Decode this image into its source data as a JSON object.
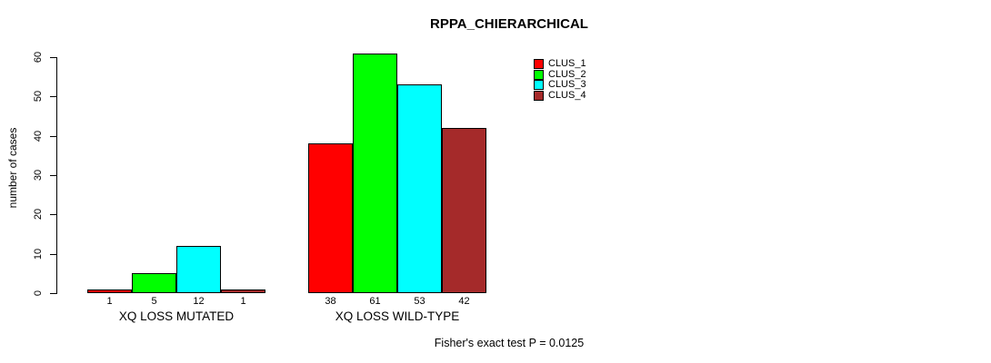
{
  "title": "RPPA_CHIERARCHICAL",
  "chart_data": {
    "type": "bar",
    "title": "RPPA_CHIERARCHICAL",
    "ylabel": "number of cases",
    "xlabel": "",
    "ylim": [
      0,
      60
    ],
    "yticks": [
      0,
      10,
      20,
      30,
      40,
      50,
      60
    ],
    "grid": false,
    "legend_position": "top-right",
    "bar_value_labels_shown": true,
    "categories": [
      "XQ LOSS MUTATED",
      "XQ LOSS WILD-TYPE"
    ],
    "series": [
      {
        "name": "CLUS_1",
        "color": "#ff0000",
        "values": [
          1,
          38
        ]
      },
      {
        "name": "CLUS_2",
        "color": "#00ff00",
        "values": [
          5,
          61
        ]
      },
      {
        "name": "CLUS_3",
        "color": "#00ffff",
        "values": [
          12,
          53
        ]
      },
      {
        "name": "CLUS_4",
        "color": "#a52a2a",
        "values": [
          1,
          42
        ]
      }
    ]
  },
  "footer": {
    "stat_note": "Fisher's exact test P = 0.0125"
  }
}
